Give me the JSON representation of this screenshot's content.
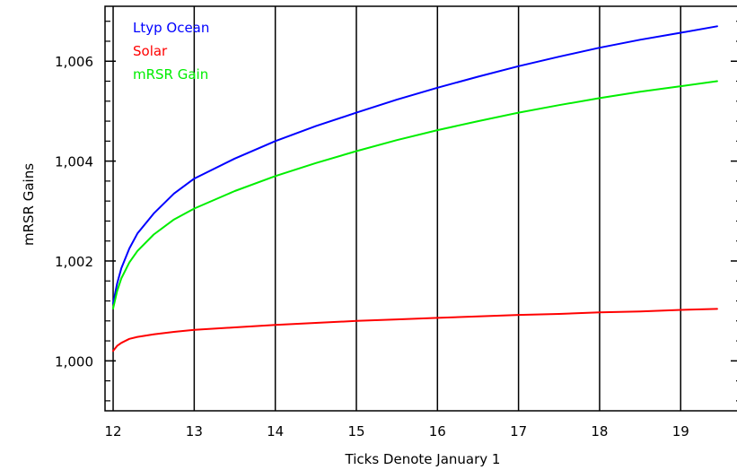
{
  "chart_data": {
    "type": "line",
    "xlabel": "Ticks Denote January 1",
    "ylabel": "mRSR Gains",
    "xlim": [
      11.9,
      19.75
    ],
    "ylim": [
      0.999,
      1.0071
    ],
    "x_ticks": [
      {
        "value": 12,
        "label": "12"
      },
      {
        "value": 13,
        "label": "13"
      },
      {
        "value": 14,
        "label": "14"
      },
      {
        "value": 15,
        "label": "15"
      },
      {
        "value": 16,
        "label": "16"
      },
      {
        "value": 17,
        "label": "17"
      },
      {
        "value": 18,
        "label": "18"
      },
      {
        "value": 19,
        "label": "19"
      }
    ],
    "y_ticks": [
      {
        "value": 1.0,
        "label": "1,000"
      },
      {
        "value": 1.002,
        "label": "1,002"
      },
      {
        "value": 1.004,
        "label": "1,004"
      },
      {
        "value": 1.006,
        "label": "1,006"
      }
    ],
    "y_minor_step": 0.0004,
    "vertical_grid": true,
    "legend_position": "top-left",
    "x": [
      12.0,
      12.05,
      12.1,
      12.2,
      12.3,
      12.5,
      12.75,
      13.0,
      13.5,
      14.0,
      14.5,
      15.0,
      15.5,
      16.0,
      16.5,
      17.0,
      17.5,
      18.0,
      18.5,
      19.0,
      19.45
    ],
    "series": [
      {
        "name": "Ltyp Ocean",
        "color": "#0000ff",
        "values": [
          1.00115,
          1.00155,
          1.00185,
          1.00225,
          1.00255,
          1.00295,
          1.00335,
          1.00365,
          1.00405,
          1.0044,
          1.0047,
          1.00497,
          1.00523,
          1.00547,
          1.00569,
          1.0059,
          1.00609,
          1.00627,
          1.00643,
          1.00657,
          1.0067
        ]
      },
      {
        "name": "Solar",
        "color": "#ff0000",
        "values": [
          1.0002,
          1.0003,
          1.00036,
          1.00044,
          1.00048,
          1.00053,
          1.00058,
          1.00062,
          1.00067,
          1.00072,
          1.00076,
          1.0008,
          1.00083,
          1.00086,
          1.00089,
          1.00092,
          1.00094,
          1.00097,
          1.00099,
          1.00102,
          1.00104
        ]
      },
      {
        "name": "mRSR Gain",
        "color": "#00ee00",
        "values": [
          1.00105,
          1.0014,
          1.00165,
          1.00197,
          1.0022,
          1.00253,
          1.00283,
          1.00305,
          1.0034,
          1.0037,
          1.00396,
          1.0042,
          1.00442,
          1.00462,
          1.0048,
          1.00497,
          1.00512,
          1.00526,
          1.00539,
          1.0055,
          1.0056
        ]
      }
    ]
  }
}
